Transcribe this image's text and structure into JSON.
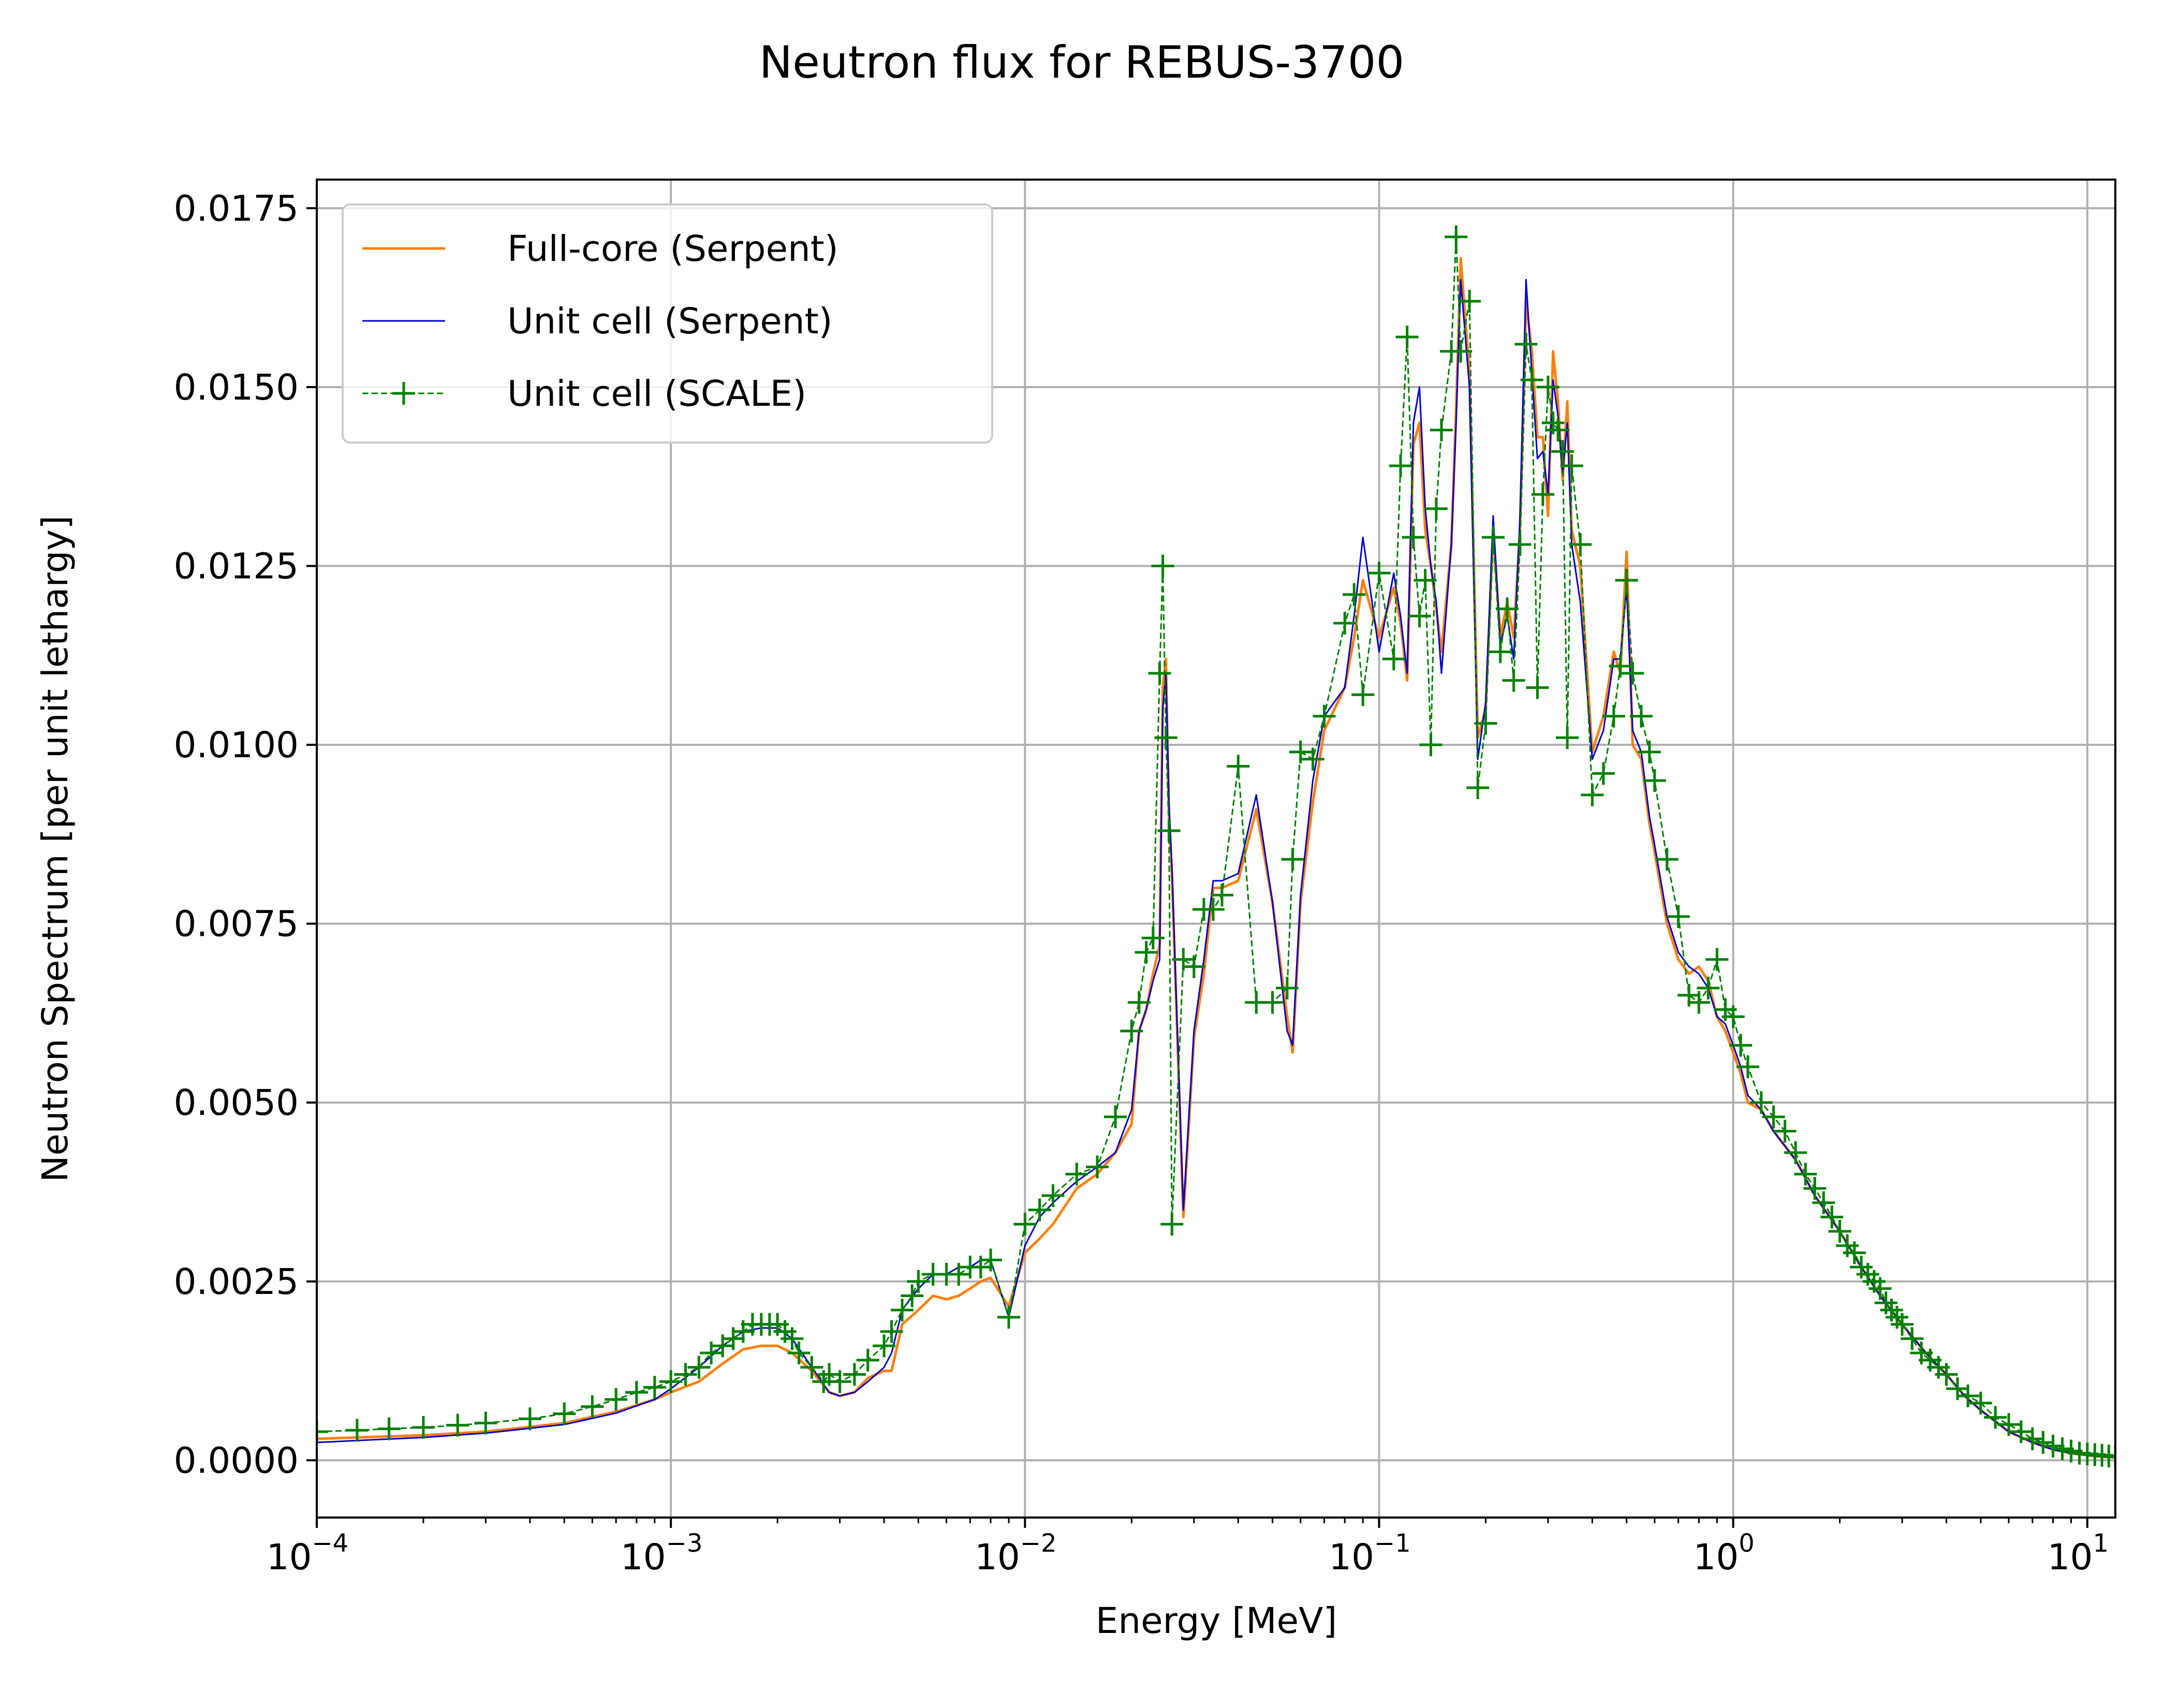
{
  "chart_data": {
    "type": "line",
    "title": "Neutron flux for REBUS-3700",
    "xlabel": "Energy [MeV]",
    "ylabel": "Neutron Spectrum [per unit lethargy]",
    "xscale": "log",
    "xlim": [
      0.0001,
      12
    ],
    "ylim": [
      -0.0008,
      0.0179
    ],
    "grid": true,
    "legend": {
      "position": "top-left"
    },
    "x_ticks": [
      {
        "value": 0.0001,
        "base": "10",
        "exp": "−4"
      },
      {
        "value": 0.001,
        "base": "10",
        "exp": "−3"
      },
      {
        "value": 0.01,
        "base": "10",
        "exp": "−2"
      },
      {
        "value": 0.1,
        "base": "10",
        "exp": "−1"
      },
      {
        "value": 1,
        "base": "10",
        "exp": "0"
      },
      {
        "value": 10,
        "base": "10",
        "exp": "1"
      }
    ],
    "y_ticks": [
      {
        "value": 0.0,
        "label": "0.0000"
      },
      {
        "value": 0.0025,
        "label": "0.0025"
      },
      {
        "value": 0.005,
        "label": "0.0050"
      },
      {
        "value": 0.0075,
        "label": "0.0075"
      },
      {
        "value": 0.01,
        "label": "0.0100"
      },
      {
        "value": 0.0125,
        "label": "0.0125"
      },
      {
        "value": 0.015,
        "label": "0.0150"
      },
      {
        "value": 0.0175,
        "label": "0.0175"
      }
    ],
    "series": [
      {
        "name": "Full-core (Serpent)",
        "color": "#ff7f0e",
        "style": "solid",
        "marker": "none",
        "x": [
          0.0001,
          0.0002,
          0.0003,
          0.0005,
          0.0007,
          0.0009,
          0.001,
          0.0012,
          0.0014,
          0.0016,
          0.0018,
          0.002,
          0.0022,
          0.0025,
          0.0028,
          0.003,
          0.0033,
          0.0036,
          0.004,
          0.0042,
          0.0045,
          0.005,
          0.0055,
          0.006,
          0.0065,
          0.007,
          0.0075,
          0.008,
          0.009,
          0.01,
          0.011,
          0.012,
          0.014,
          0.016,
          0.018,
          0.02,
          0.021,
          0.022,
          0.023,
          0.024,
          0.0245,
          0.025,
          0.0255,
          0.026,
          0.028,
          0.03,
          0.032,
          0.034,
          0.036,
          0.04,
          0.045,
          0.05,
          0.055,
          0.057,
          0.06,
          0.065,
          0.07,
          0.08,
          0.085,
          0.09,
          0.1,
          0.11,
          0.115,
          0.12,
          0.125,
          0.13,
          0.135,
          0.14,
          0.145,
          0.15,
          0.16,
          0.165,
          0.17,
          0.18,
          0.19,
          0.2,
          0.21,
          0.22,
          0.23,
          0.24,
          0.25,
          0.26,
          0.27,
          0.28,
          0.29,
          0.3,
          0.31,
          0.32,
          0.33,
          0.34,
          0.35,
          0.37,
          0.4,
          0.43,
          0.46,
          0.48,
          0.5,
          0.52,
          0.55,
          0.58,
          0.6,
          0.65,
          0.7,
          0.75,
          0.8,
          0.85,
          0.9,
          0.95,
          1,
          1.05,
          1.1,
          1.2,
          1.3,
          1.5,
          1.7,
          2,
          2.3,
          2.6,
          3,
          3.5,
          4,
          4.5,
          5,
          6,
          7,
          8,
          9,
          10,
          11,
          12
        ],
        "y": [
          0.0003,
          0.00035,
          0.0004,
          0.00052,
          0.00068,
          0.00085,
          0.00095,
          0.0011,
          0.00135,
          0.00155,
          0.0016,
          0.0016,
          0.0015,
          0.00125,
          0.00095,
          0.0009,
          0.00095,
          0.00115,
          0.00125,
          0.00125,
          0.0019,
          0.0021,
          0.0023,
          0.00225,
          0.0023,
          0.0024,
          0.0025,
          0.00255,
          0.00215,
          0.0029,
          0.0031,
          0.0033,
          0.0038,
          0.004,
          0.0043,
          0.0047,
          0.006,
          0.0063,
          0.0068,
          0.0072,
          0.0108,
          0.0112,
          0.009,
          0.0082,
          0.0034,
          0.0059,
          0.0068,
          0.008,
          0.008,
          0.0081,
          0.0091,
          0.0078,
          0.0062,
          0.0057,
          0.0078,
          0.0092,
          0.0102,
          0.0108,
          0.0115,
          0.0123,
          0.0115,
          0.0122,
          0.0117,
          0.0109,
          0.0142,
          0.0145,
          0.013,
          0.0125,
          0.0119,
          0.0113,
          0.0128,
          0.0147,
          0.0168,
          0.0152,
          0.0101,
          0.0105,
          0.013,
          0.0115,
          0.012,
          0.0115,
          0.013,
          0.0162,
          0.0155,
          0.0143,
          0.0143,
          0.0132,
          0.0155,
          0.0148,
          0.0137,
          0.0148,
          0.013,
          0.0125,
          0.0099,
          0.0104,
          0.0113,
          0.011,
          0.0127,
          0.01,
          0.0098,
          0.0089,
          0.0085,
          0.0075,
          0.007,
          0.0068,
          0.0069,
          0.0067,
          0.0062,
          0.006,
          0.0057,
          0.0054,
          0.005,
          0.0049,
          0.0046,
          0.0042,
          0.0037,
          0.0032,
          0.0027,
          0.0023,
          0.0019,
          0.0015,
          0.0012,
          0.0009,
          0.0007,
          0.0004,
          0.00025,
          0.00015,
          0.0001,
          7e-05,
          5e-05,
          4e-05
        ]
      },
      {
        "name": "Unit cell (Serpent)",
        "color": "#0000cc",
        "style": "solid",
        "marker": "none",
        "x": [
          0.0001,
          0.0002,
          0.0003,
          0.0005,
          0.0007,
          0.0009,
          0.001,
          0.0012,
          0.0014,
          0.0016,
          0.0018,
          0.002,
          0.0022,
          0.0025,
          0.0028,
          0.003,
          0.0033,
          0.0036,
          0.004,
          0.0042,
          0.0045,
          0.005,
          0.0055,
          0.006,
          0.0065,
          0.007,
          0.0075,
          0.008,
          0.009,
          0.01,
          0.011,
          0.012,
          0.014,
          0.016,
          0.018,
          0.02,
          0.021,
          0.022,
          0.023,
          0.024,
          0.0245,
          0.025,
          0.0255,
          0.026,
          0.028,
          0.03,
          0.032,
          0.034,
          0.036,
          0.04,
          0.045,
          0.05,
          0.055,
          0.057,
          0.06,
          0.065,
          0.07,
          0.08,
          0.085,
          0.09,
          0.1,
          0.11,
          0.115,
          0.12,
          0.125,
          0.13,
          0.135,
          0.14,
          0.145,
          0.15,
          0.16,
          0.165,
          0.17,
          0.18,
          0.19,
          0.2,
          0.21,
          0.22,
          0.23,
          0.24,
          0.25,
          0.26,
          0.27,
          0.28,
          0.29,
          0.3,
          0.31,
          0.32,
          0.33,
          0.34,
          0.35,
          0.37,
          0.4,
          0.43,
          0.46,
          0.48,
          0.5,
          0.52,
          0.55,
          0.58,
          0.6,
          0.65,
          0.7,
          0.75,
          0.8,
          0.85,
          0.9,
          0.95,
          1,
          1.05,
          1.1,
          1.2,
          1.3,
          1.5,
          1.7,
          2,
          2.3,
          2.6,
          3,
          3.5,
          4,
          4.5,
          5,
          6,
          7,
          8,
          9,
          10,
          11,
          12
        ],
        "y": [
          0.00025,
          0.00032,
          0.00038,
          0.0005,
          0.00066,
          0.00085,
          0.001,
          0.0013,
          0.0016,
          0.0018,
          0.00185,
          0.00185,
          0.0017,
          0.0013,
          0.00095,
          0.0009,
          0.00095,
          0.0011,
          0.0013,
          0.0015,
          0.0021,
          0.0024,
          0.0026,
          0.0026,
          0.0027,
          0.0027,
          0.0028,
          0.0028,
          0.002,
          0.003,
          0.0034,
          0.0036,
          0.0039,
          0.0041,
          0.0043,
          0.0049,
          0.006,
          0.0063,
          0.0067,
          0.007,
          0.0105,
          0.011,
          0.0092,
          0.0083,
          0.0035,
          0.006,
          0.007,
          0.0081,
          0.0081,
          0.0082,
          0.0093,
          0.0078,
          0.006,
          0.0058,
          0.0079,
          0.0095,
          0.0104,
          0.0108,
          0.0118,
          0.0129,
          0.0113,
          0.0124,
          0.0118,
          0.011,
          0.0145,
          0.015,
          0.0133,
          0.0125,
          0.012,
          0.011,
          0.0128,
          0.0145,
          0.0165,
          0.015,
          0.0098,
          0.0106,
          0.0132,
          0.0114,
          0.0118,
          0.0112,
          0.0132,
          0.0165,
          0.0152,
          0.014,
          0.0141,
          0.0135,
          0.0151,
          0.0146,
          0.0138,
          0.0145,
          0.0128,
          0.012,
          0.0098,
          0.0102,
          0.0112,
          0.0112,
          0.0122,
          0.0102,
          0.0099,
          0.009,
          0.0086,
          0.0076,
          0.0071,
          0.0069,
          0.0068,
          0.0066,
          0.0062,
          0.0061,
          0.0058,
          0.0055,
          0.0051,
          0.0049,
          0.0046,
          0.0042,
          0.0037,
          0.0032,
          0.0027,
          0.0023,
          0.0019,
          0.0015,
          0.0012,
          0.0009,
          0.0007,
          0.0004,
          0.00025,
          0.00015,
          0.0001,
          7e-05,
          5e-05,
          4e-05
        ]
      },
      {
        "name": "Unit cell (SCALE)",
        "color": "#008000",
        "style": "dashed",
        "marker": "+",
        "x": [
          0.0001,
          0.00013,
          0.00016,
          0.0002,
          0.00025,
          0.0003,
          0.0004,
          0.0005,
          0.0006,
          0.0007,
          0.0008,
          0.0009,
          0.001,
          0.0011,
          0.0012,
          0.0013,
          0.0014,
          0.0015,
          0.0016,
          0.0017,
          0.0018,
          0.0019,
          0.002,
          0.0021,
          0.0022,
          0.0023,
          0.0025,
          0.0027,
          0.0028,
          0.003,
          0.0033,
          0.0036,
          0.004,
          0.0042,
          0.0045,
          0.0048,
          0.005,
          0.0055,
          0.006,
          0.0065,
          0.007,
          0.0075,
          0.008,
          0.009,
          0.01,
          0.011,
          0.012,
          0.014,
          0.016,
          0.018,
          0.02,
          0.021,
          0.022,
          0.023,
          0.024,
          0.0245,
          0.025,
          0.0255,
          0.026,
          0.028,
          0.03,
          0.032,
          0.034,
          0.036,
          0.04,
          0.045,
          0.05,
          0.055,
          0.057,
          0.06,
          0.065,
          0.07,
          0.08,
          0.085,
          0.09,
          0.1,
          0.11,
          0.115,
          0.12,
          0.125,
          0.13,
          0.135,
          0.14,
          0.145,
          0.15,
          0.16,
          0.165,
          0.17,
          0.18,
          0.19,
          0.2,
          0.21,
          0.22,
          0.23,
          0.24,
          0.25,
          0.26,
          0.27,
          0.28,
          0.29,
          0.3,
          0.31,
          0.32,
          0.33,
          0.34,
          0.35,
          0.37,
          0.4,
          0.43,
          0.46,
          0.48,
          0.5,
          0.52,
          0.55,
          0.58,
          0.6,
          0.65,
          0.7,
          0.75,
          0.8,
          0.85,
          0.9,
          0.95,
          1,
          1.05,
          1.1,
          1.2,
          1.3,
          1.4,
          1.5,
          1.6,
          1.7,
          1.8,
          1.9,
          2,
          2.1,
          2.2,
          2.3,
          2.4,
          2.5,
          2.6,
          2.7,
          2.8,
          2.9,
          3,
          3.2,
          3.4,
          3.6,
          3.8,
          4,
          4.3,
          4.6,
          5,
          5.5,
          6,
          6.5,
          7,
          7.5,
          8,
          8.5,
          9,
          9.5,
          10,
          10.5,
          11,
          11.5,
          12
        ],
        "y": [
          0.0004,
          0.00042,
          0.00044,
          0.00046,
          0.00049,
          0.00052,
          0.00058,
          0.00065,
          0.00075,
          0.00085,
          0.00095,
          0.00102,
          0.0011,
          0.0012,
          0.0013,
          0.0015,
          0.0016,
          0.0017,
          0.0018,
          0.0019,
          0.0019,
          0.0019,
          0.0019,
          0.0018,
          0.0017,
          0.0015,
          0.0013,
          0.0011,
          0.0012,
          0.0011,
          0.0012,
          0.0014,
          0.0016,
          0.0018,
          0.0021,
          0.0023,
          0.0025,
          0.0026,
          0.0026,
          0.0026,
          0.0027,
          0.0027,
          0.0028,
          0.002,
          0.0033,
          0.0035,
          0.0037,
          0.004,
          0.0041,
          0.0048,
          0.006,
          0.0064,
          0.0071,
          0.0073,
          0.011,
          0.0125,
          0.0101,
          0.0088,
          0.0033,
          0.007,
          0.0069,
          0.0077,
          0.0077,
          0.0079,
          0.0097,
          0.0064,
          0.0064,
          0.0066,
          0.0084,
          0.0099,
          0.0098,
          0.0104,
          0.0117,
          0.0121,
          0.0107,
          0.0124,
          0.0112,
          0.0139,
          0.0157,
          0.0129,
          0.0118,
          0.0123,
          0.01,
          0.0133,
          0.0144,
          0.0155,
          0.0171,
          0.0155,
          0.0162,
          0.0094,
          0.0103,
          0.0129,
          0.0113,
          0.0119,
          0.0109,
          0.0128,
          0.0156,
          0.0151,
          0.0108,
          0.0135,
          0.015,
          0.0145,
          0.0144,
          0.0141,
          0.0101,
          0.0139,
          0.0128,
          0.0093,
          0.0096,
          0.0104,
          0.0111,
          0.0123,
          0.011,
          0.0104,
          0.0099,
          0.0095,
          0.0084,
          0.0076,
          0.0065,
          0.0064,
          0.0066,
          0.007,
          0.0063,
          0.0062,
          0.0058,
          0.0055,
          0.005,
          0.0048,
          0.0046,
          0.0043,
          0.004,
          0.0038,
          0.0036,
          0.0034,
          0.0032,
          0.003,
          0.0029,
          0.0027,
          0.0026,
          0.0025,
          0.0024,
          0.0022,
          0.0021,
          0.002,
          0.0019,
          0.0017,
          0.0015,
          0.0014,
          0.0013,
          0.0012,
          0.001,
          0.0009,
          0.0008,
          0.0006,
          0.0005,
          0.0004,
          0.0003,
          0.00025,
          0.0002,
          0.00016,
          0.00013,
          0.0001,
          9e-05,
          8e-05,
          7e-05,
          6e-05,
          5e-05
        ]
      }
    ]
  }
}
